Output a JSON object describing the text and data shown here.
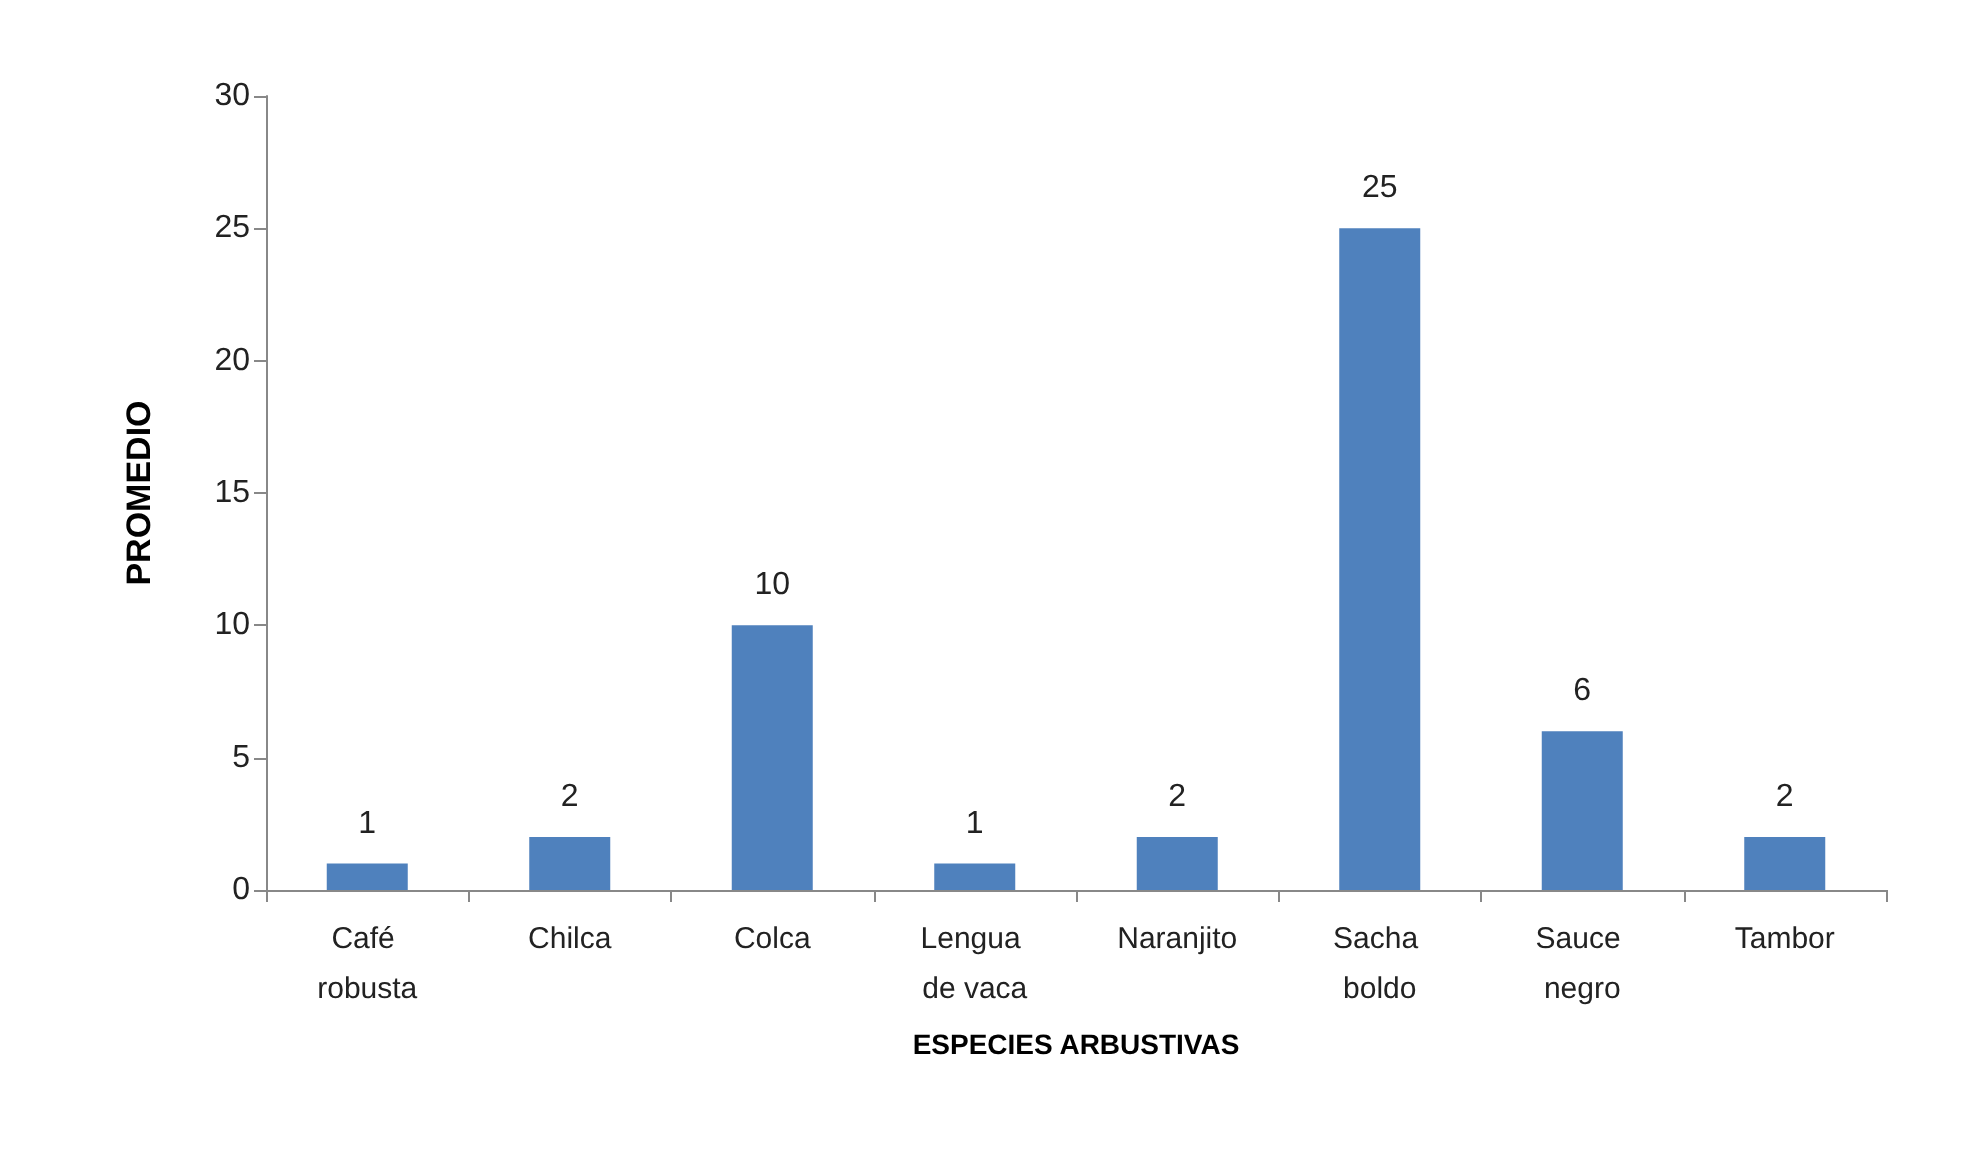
{
  "chart_data": {
    "type": "bar",
    "xlabel": "ESPECIES ARBUSTIVAS",
    "ylabel": "PROMEDIO",
    "categories": [
      "Café robusta",
      "Chilca",
      "Colca",
      "Lengua de vaca",
      "Naranjito",
      "Sacha boldo",
      "Sauce negro",
      "Tambor"
    ],
    "values": [
      1,
      2,
      10,
      1,
      2,
      25,
      6,
      2
    ],
    "color": "#4f81bd",
    "data_labels": true,
    "ylim": [
      0,
      30
    ],
    "yticks": [
      0,
      5,
      10,
      15,
      20,
      25,
      30
    ],
    "grid": false
  }
}
